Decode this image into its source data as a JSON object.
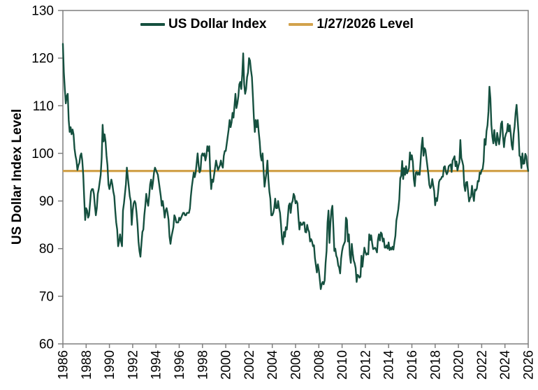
{
  "chart_data": {
    "type": "line",
    "title": "",
    "ylabel": "US Dollar Index Level",
    "xlabel": "",
    "ylim": [
      60,
      130
    ],
    "y_ticks": [
      130,
      120,
      110,
      100,
      90,
      80,
      70,
      60
    ],
    "x_tick_labels": [
      "1986",
      "1988",
      "1990",
      "1992",
      "1994",
      "1996",
      "1998",
      "2000",
      "2002",
      "2004",
      "2006",
      "2008",
      "2010",
      "2012",
      "2014",
      "2016",
      "2018",
      "2020",
      "2022",
      "2024",
      "2026"
    ],
    "grid": "off",
    "legend_position": "top-center",
    "legend": [
      {
        "label": "US Dollar Index",
        "color": "#15503F"
      },
      {
        "label": "1/27/2026 Level",
        "color": "#D2A24C"
      }
    ],
    "reference_line": {
      "name": "1/27/2026 Level",
      "value": 96.3,
      "color": "#D2A24C"
    },
    "series": [
      {
        "name": "US Dollar Index",
        "color": "#15503F",
        "start": "1986-01",
        "end": "2026-01",
        "interval": "monthly",
        "values": [
          123,
          117,
          113.5,
          110.5,
          112,
          112.5,
          107,
          104.5,
          105.5,
          104,
          105,
          104,
          101,
          99.5,
          98.5,
          96.5,
          97.5,
          98,
          99.5,
          100,
          98.5,
          95.5,
          90.5,
          86,
          88.5,
          88,
          86.5,
          87,
          89.5,
          92,
          92.5,
          92.5,
          91.5,
          89,
          87,
          88.5,
          91.5,
          92.5,
          94,
          95.5,
          99,
          106,
          102.5,
          104,
          102.5,
          99.5,
          97.5,
          93.5,
          92.5,
          93.5,
          94.5,
          93.5,
          92,
          91,
          88,
          85.5,
          84,
          80.5,
          81.5,
          83,
          81.5,
          80.5,
          88,
          89.5,
          91.5,
          93.5,
          97,
          95,
          93,
          91,
          90,
          85,
          88,
          89.5,
          90,
          89.5,
          87.5,
          85,
          81.5,
          79.5,
          78.3,
          81,
          83.5,
          84,
          87,
          89,
          91.5,
          90,
          89,
          91,
          93.5,
          94.5,
          92.5,
          94,
          96,
          97,
          96.5,
          96,
          95.5,
          94,
          92.5,
          91,
          89,
          90,
          88.5,
          86.5,
          88,
          88.5,
          87.5,
          86,
          82.5,
          81,
          82.5,
          83.5,
          84.5,
          87,
          86.5,
          85.5,
          85.5,
          85.5,
          86.5,
          86,
          86.5,
          87,
          87.5,
          87.5,
          87,
          87,
          87.5,
          87.5,
          87.5,
          88.4,
          91,
          93,
          94.5,
          96,
          95,
          96,
          98,
          100,
          97.5,
          96,
          96.5,
          99.5,
          100,
          99.5,
          100,
          98.5,
          99.5,
          101.5,
          100.5,
          101.5,
          96,
          92.5,
          94.5,
          94,
          95.5,
          97,
          98.5,
          97.5,
          96.5,
          97,
          97.5,
          98.5,
          97.5,
          97,
          99.5,
          100.5,
          100.5,
          102,
          103.5,
          105,
          107,
          105.5,
          106.5,
          108.5,
          107.5,
          110,
          112.5,
          109.5,
          110.5,
          112,
          114.5,
          115,
          113.5,
          116.5,
          121,
          114.5,
          112.5,
          113.5,
          116,
          117,
          120,
          119.5,
          117.5,
          116,
          112,
          107.5,
          104.5,
          107,
          105.5,
          107,
          104.5,
          102.5,
          99.5,
          98.5,
          100,
          96.5,
          93,
          94.5,
          96,
          98.5,
          94.5,
          92,
          90.5,
          87,
          87,
          87.5,
          88.5,
          90.5,
          88.5,
          88.5,
          90,
          88.5,
          87.5,
          85,
          82,
          80.9,
          83.5,
          82.5,
          84.5,
          84,
          86.5,
          89,
          89.5,
          87.5,
          89.5,
          90,
          91.5,
          91,
          89.5,
          90,
          89.5,
          86.5,
          84,
          85.5,
          85,
          85,
          85.5,
          85.5,
          83.5,
          83.4,
          85,
          84,
          83.5,
          81.5,
          82,
          81.5,
          80.5,
          80.7,
          78,
          76.5,
          75,
          76.7,
          75.5,
          73.5,
          71.5,
          72.5,
          73,
          72.5,
          73.3,
          77,
          79.5,
          85.5,
          88,
          81.2,
          85.5,
          88,
          89,
          84.5,
          79.5,
          80,
          78.5,
          78,
          76.5,
          76,
          74.8,
          77.9,
          79.5,
          80.5,
          81,
          81.5,
          86.5,
          86,
          81.5,
          83,
          78.7,
          77,
          81,
          79,
          77.5,
          76.9,
          75.9,
          73,
          74.5,
          74.3,
          73.9,
          74.1,
          78.5,
          76.2,
          78.3,
          80.2,
          79.3,
          78.7,
          79,
          78.8,
          83,
          81.8,
          82.8,
          81.2,
          79.9,
          80,
          80.2,
          79.8,
          79.2,
          81.9,
          83,
          81.7,
          83.4,
          83.1,
          81.5,
          82.1,
          80.2,
          80.2,
          80.7,
          80,
          81.3,
          79.7,
          80.2,
          79.8,
          80.4,
          79.8,
          81.4,
          82.7,
          85.9,
          87,
          88.3,
          90.3,
          94.8,
          95.3,
          98.4,
          94.6,
          96.9,
          95.5,
          97.3,
          95.8,
          96.3,
          96.9,
          100.2,
          98.7,
          99.6,
          98.2,
          94.6,
          93.1,
          95.9,
          96.1,
          95.5,
          96,
          95.5,
          98.4,
          101.5,
          103.3,
          99.5,
          101.1,
          100.7,
          99,
          97.3,
          95.6,
          93.4,
          92.7,
          93.1,
          94.6,
          93.3,
          92.1,
          89.1,
          90.6,
          90,
          91.8,
          94,
          94.5,
          94.6,
          95.1,
          95.1,
          97.1,
          97.3,
          96.2,
          95.6,
          96.1,
          97.3,
          97.5,
          97.7,
          96.1,
          98.5,
          98.9,
          99.4,
          97.3,
          98.3,
          96.4,
          97.4,
          98.1,
          102.8,
          99,
          98.3,
          97.4,
          93.3,
          92.1,
          93.9,
          94,
          91.9,
          89.9,
          90.6,
          90.9,
          93.2,
          91.3,
          90,
          92.4,
          92.2,
          92.6,
          94.2,
          94.1,
          96,
          95.7,
          96.5,
          96.7,
          98.3,
          103,
          101.8,
          104.7,
          105.9,
          108.8,
          114,
          111.5,
          106,
          103.5,
          102.1,
          104.9,
          102.6,
          101.7,
          104.3,
          102.9,
          101.9,
          103.6,
          106.2,
          106.7,
          103.5,
          101.3,
          103.3,
          104.1,
          104.5,
          106.2,
          104.6,
          105.9,
          104.1,
          101.7,
          100.8,
          104,
          105.7,
          108.5,
          110.2,
          107.3,
          104.2,
          99.5,
          99.3,
          96.9,
          100,
          97.8,
          97.9,
          99.9,
          99.4,
          97.5,
          96.3
        ]
      }
    ]
  },
  "colors": {
    "line": "#15503F",
    "reference": "#D2A24C",
    "axis": "#7F7F7F",
    "text": "#000000",
    "background": "#FFFFFF"
  }
}
